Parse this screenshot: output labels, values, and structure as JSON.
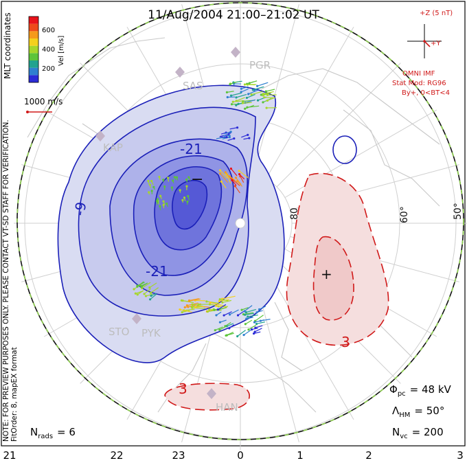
{
  "title": "11/Aug/2004 21:00–21:02 UT",
  "colorbar": {
    "title": "Vel [m/s]",
    "tick_labels": [
      "600",
      "400",
      "200"
    ],
    "colors": [
      "#2b2bd6",
      "#2f7fd0",
      "#22a38f",
      "#5cc43a",
      "#a6d62a",
      "#f4d01c",
      "#f59a1c",
      "#ee4a1a",
      "#e8121a"
    ]
  },
  "coord_label": "MLT coordinates",
  "scale_label": "1000 m/s",
  "imf": {
    "z_label": "+Z (5 nT)",
    "y_label": "+Y",
    "omni_label": "OMNI IMF",
    "model_label": "Stat Mod: RG96",
    "condition_label": "By+, 0<BT<4"
  },
  "note": {
    "line1": "NOTE: FOR PREVIEW PURPOSES ONLY. PLEASE CONTACT VT-SD STAFF FOR VERIFICATION.",
    "line2": "FitOrder: 8, mapEX format"
  },
  "stations": [
    "PGR",
    "SAS",
    "KAP",
    "STO",
    "PYK",
    "HAN"
  ],
  "contour_labels": [
    "-21",
    "-21",
    "-9",
    "3",
    "3"
  ],
  "latitude_labels": [
    "80",
    "60°",
    "50°"
  ],
  "extrema_markers": [
    "−",
    "+"
  ],
  "mlt_labels": [
    "21",
    "22",
    "23",
    "0",
    "1",
    "2",
    "3"
  ],
  "stats": {
    "phi_pc": {
      "symbol": "Φ",
      "sub": "pc",
      "rest": "= 48 kV"
    },
    "lambda_hm": {
      "symbol": "Λ",
      "sub": "HM",
      "rest": "= 50°"
    },
    "n_vc": {
      "symbol": "N",
      "sub": "vc",
      "rest": "= 200"
    },
    "n_rads": {
      "symbol": "N",
      "sub": "rads",
      "rest": "= 6"
    }
  }
}
